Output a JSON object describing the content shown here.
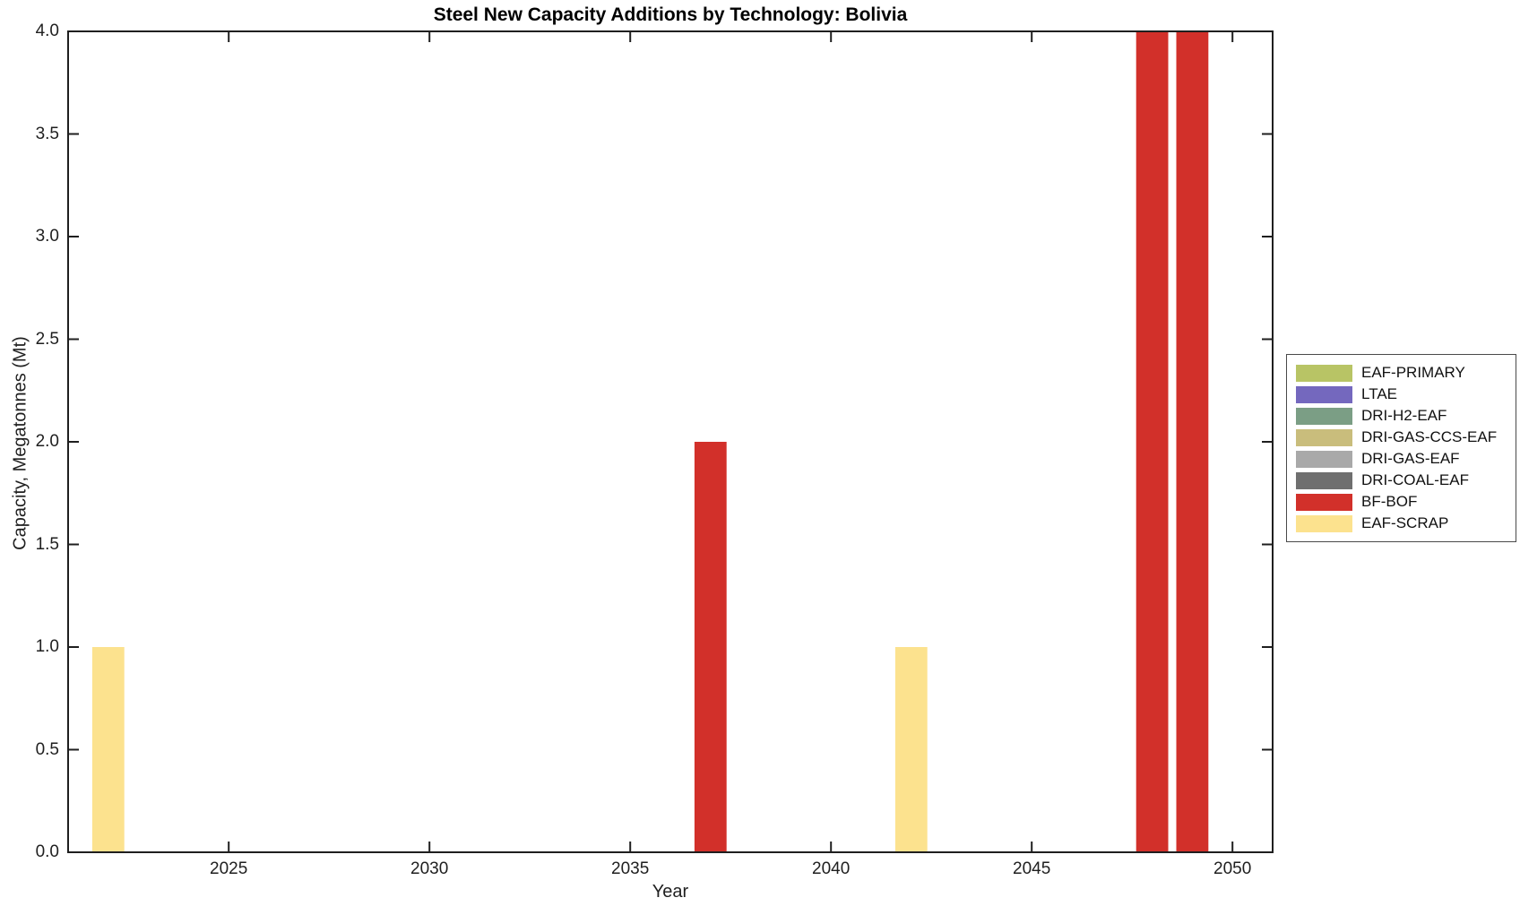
{
  "chart_data": {
    "type": "bar",
    "title": "Steel New Capacity Additions by Technology: Bolivia",
    "xlabel": "Year",
    "ylabel": "Capacity, Megatonnes (Mt)",
    "xlim": [
      2021,
      2051
    ],
    "ylim": [
      0,
      4
    ],
    "x_ticks": [
      2025,
      2030,
      2035,
      2040,
      2045,
      2050
    ],
    "y_ticks": [
      0,
      0.5,
      1,
      1.5,
      2,
      2.5,
      3,
      3.5,
      4
    ],
    "y_tick_decimals": 1,
    "grid": false,
    "bar_width_years": 0.8,
    "axis_color": "#1f1f1f",
    "background_color": "#ffffff",
    "legend_position": "right-outside",
    "legend_entries": [
      {
        "label": "EAF-PRIMARY",
        "color": "#b8c465"
      },
      {
        "label": "LTAE",
        "color": "#7468be"
      },
      {
        "label": "DRI-H2-EAF",
        "color": "#7b9e85"
      },
      {
        "label": "DRI-GAS-CCS-EAF",
        "color": "#c9bd7c"
      },
      {
        "label": "DRI-GAS-EAF",
        "color": "#a9a9a9"
      },
      {
        "label": "DRI-COAL-EAF",
        "color": "#6f6f6f"
      },
      {
        "label": "BF-BOF",
        "color": "#d2302a"
      },
      {
        "label": "EAF-SCRAP",
        "color": "#fce28e"
      }
    ],
    "bars": [
      {
        "year": 2022,
        "value": 1.0,
        "technology": "EAF-SCRAP"
      },
      {
        "year": 2037,
        "value": 2.0,
        "technology": "BF-BOF"
      },
      {
        "year": 2042,
        "value": 1.0,
        "technology": "EAF-SCRAP"
      },
      {
        "year": 2048,
        "value": 4.0,
        "technology": "BF-BOF"
      },
      {
        "year": 2049,
        "value": 4.0,
        "technology": "BF-BOF"
      }
    ]
  }
}
